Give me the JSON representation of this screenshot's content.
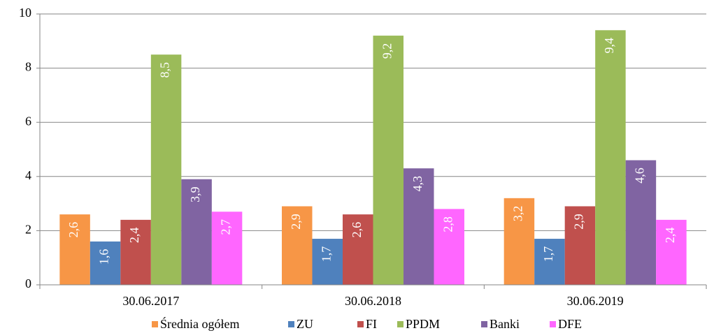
{
  "chart_data": {
    "type": "bar",
    "categories": [
      "30.06.2017",
      "30.06.2018",
      "30.06.2019"
    ],
    "series": [
      {
        "name": "Średnia ogółem",
        "color": "#f79646",
        "values": [
          2.6,
          2.9,
          3.2
        ],
        "value_labels": [
          "2,6",
          "2,9",
          "3,2"
        ]
      },
      {
        "name": "ZU",
        "color": "#4f81bd",
        "values": [
          1.6,
          1.7,
          1.7
        ],
        "value_labels": [
          "1,6",
          "1,7",
          "1,7"
        ]
      },
      {
        "name": "FI",
        "color": "#c0504d",
        "values": [
          2.4,
          2.6,
          2.9
        ],
        "value_labels": [
          "2,4",
          "2,6",
          "2,9"
        ]
      },
      {
        "name": "PPDM",
        "color": "#9bbb59",
        "values": [
          8.5,
          9.2,
          9.4
        ],
        "value_labels": [
          "8,5",
          "9,2",
          "9,4"
        ]
      },
      {
        "name": "Banki",
        "color": "#8064a2",
        "values": [
          3.9,
          4.3,
          4.6
        ],
        "value_labels": [
          "3,9",
          "4,3",
          "4,6"
        ]
      },
      {
        "name": "DFE",
        "color": "#ff66ff",
        "values": [
          2.7,
          2.8,
          2.4
        ],
        "value_labels": [
          "2,7",
          "2,8",
          "2,4"
        ]
      }
    ],
    "ylim": [
      0,
      10
    ],
    "yticks": [
      0,
      2,
      4,
      6,
      8,
      10
    ],
    "grid": true,
    "legend": "bottom"
  }
}
